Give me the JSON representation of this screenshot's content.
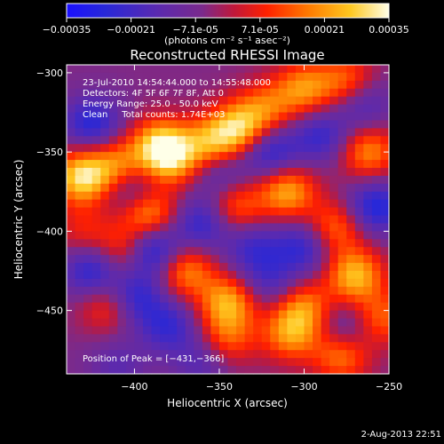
{
  "chart_data": {
    "type": "heatmap",
    "title": "Reconstructed RHESSI Image",
    "xlabel": "Heliocentric X (arcsec)",
    "ylabel": "Heliocentric Y (arcsec)",
    "xlim": [
      -440,
      -250
    ],
    "ylim": [
      -490,
      -295
    ],
    "x_ticks": [
      -400,
      -350,
      -300,
      -250
    ],
    "x_tick_labels": [
      "−400",
      "−350",
      "−300",
      "−250"
    ],
    "y_ticks": [
      -300,
      -350,
      -400,
      -450
    ],
    "y_tick_labels": [
      "−300",
      "−350",
      "−400",
      "−450"
    ],
    "colorbar": {
      "range": [
        -0.00035,
        0.00035
      ],
      "tick_labels": [
        "−0.00035",
        "−0.00021",
        "−7.1e-05",
        "7.1e-05",
        "0.00021",
        "0.00035"
      ],
      "unit": "(photons cm⁻² s⁻¹ asec⁻²)"
    },
    "annotations": [
      "23-Jul-2010 14:54:44.000 to 14:55:48.000",
      "Detectors: 4F 5F 6F 7F 8F, Att 0",
      "Energy Range: 25.0 - 50.0 keV",
      "Clean     Total counts: 1.74E+03",
      "Position of Peak = [−431,−366]"
    ],
    "peaks": [
      {
        "x": -431,
        "y": -366,
        "v": 0.00035
      },
      {
        "x": -392,
        "y": -388,
        "v": 0.0003
      },
      {
        "x": -410,
        "y": -358,
        "v": 0.00022
      },
      {
        "x": -385,
        "y": -345,
        "v": 0.00028
      },
      {
        "x": -378,
        "y": -355,
        "v": 0.00025
      },
      {
        "x": -355,
        "y": -345,
        "v": 0.00026
      },
      {
        "x": -338,
        "y": -335,
        "v": 0.0003
      },
      {
        "x": -322,
        "y": -322,
        "v": 0.00018
      },
      {
        "x": -300,
        "y": -310,
        "v": 0.00024
      },
      {
        "x": -275,
        "y": -305,
        "v": 0.0002
      },
      {
        "x": -340,
        "y": -385,
        "v": 0.0002
      },
      {
        "x": -310,
        "y": -375,
        "v": 0.00028
      },
      {
        "x": -262,
        "y": -350,
        "v": 0.00024
      },
      {
        "x": -282,
        "y": -398,
        "v": 0.00022
      },
      {
        "x": -405,
        "y": -412,
        "v": 0.0002
      },
      {
        "x": -370,
        "y": -425,
        "v": 0.00024
      },
      {
        "x": -345,
        "y": -445,
        "v": 0.00028
      },
      {
        "x": -300,
        "y": -448,
        "v": 0.00022
      },
      {
        "x": -270,
        "y": -428,
        "v": 0.0003
      },
      {
        "x": -255,
        "y": -455,
        "v": 0.0002
      },
      {
        "x": -308,
        "y": -465,
        "v": 0.00024
      },
      {
        "x": -278,
        "y": -478,
        "v": 0.00024
      },
      {
        "x": -345,
        "y": -468,
        "v": 0.00018
      },
      {
        "x": -415,
        "y": -447,
        "v": 0.00018
      },
      {
        "x": -430,
        "y": -400,
        "v": 0.00012
      },
      {
        "x": -425,
        "y": -332,
        "v": -0.00022
      },
      {
        "x": -400,
        "y": -375,
        "v": -0.00018
      },
      {
        "x": -390,
        "y": -412,
        "v": -0.0003
      },
      {
        "x": -425,
        "y": -425,
        "v": -0.00022
      },
      {
        "x": -400,
        "y": -442,
        "v": -0.00022
      },
      {
        "x": -380,
        "y": -460,
        "v": -0.00018
      },
      {
        "x": -360,
        "y": -395,
        "v": -0.0002
      },
      {
        "x": -350,
        "y": -362,
        "v": -0.00015
      },
      {
        "x": -320,
        "y": -350,
        "v": -0.00022
      },
      {
        "x": -290,
        "y": -340,
        "v": -0.00018
      },
      {
        "x": -265,
        "y": -320,
        "v": -0.00015
      },
      {
        "x": -330,
        "y": -410,
        "v": -0.00016
      },
      {
        "x": -300,
        "y": -410,
        "v": -0.0002
      },
      {
        "x": -258,
        "y": -385,
        "v": -0.00024
      },
      {
        "x": -275,
        "y": -462,
        "v": -0.00015
      },
      {
        "x": -320,
        "y": -432,
        "v": -0.00014
      },
      {
        "x": -360,
        "y": -482,
        "v": -0.00012
      },
      {
        "x": -410,
        "y": -485,
        "v": -0.0001
      }
    ]
  },
  "footer": {
    "timestamp": "2-Aug-2013 22:51"
  }
}
